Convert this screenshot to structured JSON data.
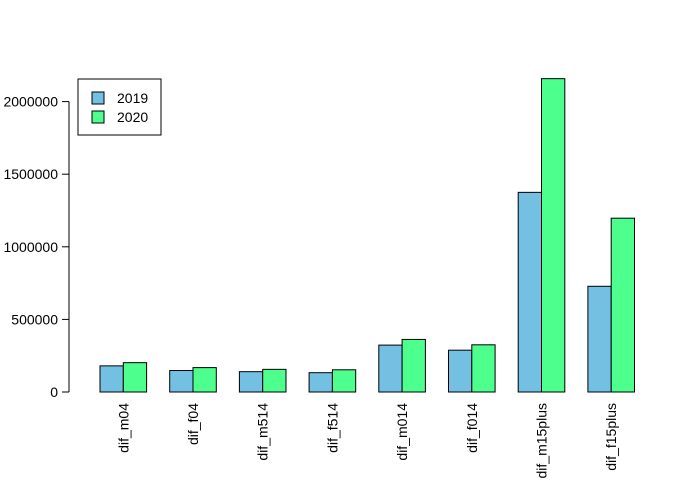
{
  "chart_data": {
    "type": "bar",
    "categories": [
      "dif_m04",
      "dif_f04",
      "dif_m514",
      "dif_f514",
      "dif_m014",
      "dif_f014",
      "dif_m15plus",
      "dif_f15plus"
    ],
    "series": [
      {
        "name": "2019",
        "color": "#74c0e3",
        "values": [
          180000,
          148000,
          140000,
          133000,
          323000,
          288000,
          1375000,
          728000
        ]
      },
      {
        "name": "2020",
        "color": "#4dff8c",
        "values": [
          202000,
          168000,
          156000,
          153000,
          362000,
          325000,
          2158000,
          1197000
        ]
      }
    ],
    "y_ticks": [
      "0",
      "500000",
      "1000000",
      "1500000",
      "2000000"
    ],
    "ylim": [
      0,
      2200000
    ],
    "legend_position": "top-left",
    "grid": false,
    "bar_outline_color": "#000000"
  }
}
